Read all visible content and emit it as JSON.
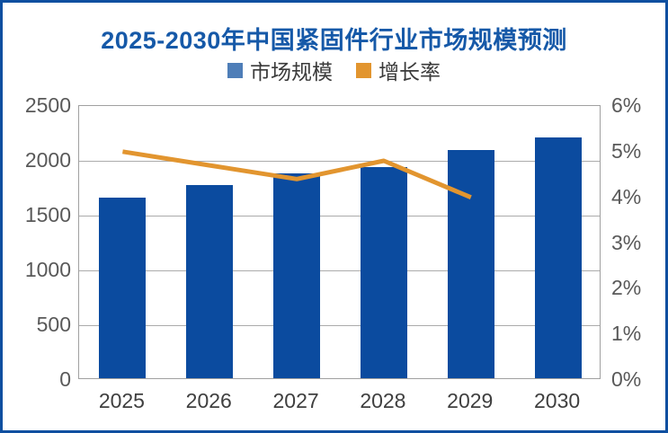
{
  "title": "2025-2030年中国紧固件行业市场规模预测",
  "legend": {
    "items": [
      {
        "label": "市场规模",
        "color": "#4e7eb8"
      },
      {
        "label": "增长率",
        "color": "#e2952f"
      }
    ]
  },
  "colors": {
    "background": "#ffffff",
    "card_border": "#0e4fa0",
    "title_text": "#1659a8",
    "bar_fill": "#0b4b9f",
    "line_stroke": "#e2952f",
    "grid_line": "#ababab",
    "plot_border": "#a0a0a0",
    "y_tick_text": "#595959",
    "x_tick_text": "#3f3f3f",
    "legend_text": "#3a3a3a"
  },
  "chart_data": {
    "type": "bar",
    "title": "2025-2030年中国紧固件行业市场规模预测",
    "categories": [
      "2025",
      "2026",
      "2027",
      "2028",
      "2029",
      "2030"
    ],
    "series": [
      {
        "name": "市场规模",
        "type": "bar",
        "axis": "left",
        "values": [
          1650,
          1760,
          1870,
          1930,
          2080,
          2200
        ]
      },
      {
        "name": "增长率",
        "type": "line",
        "axis": "right",
        "values": [
          5.0,
          4.7,
          4.4,
          4.8,
          4.0,
          null
        ]
      }
    ],
    "left_axis": {
      "min": 0,
      "max": 2500,
      "step": 500,
      "ticks": [
        "0",
        "500",
        "1000",
        "1500",
        "2000",
        "2500"
      ]
    },
    "right_axis": {
      "min": 0,
      "max": 6,
      "step": 1,
      "ticks": [
        "0%",
        "1%",
        "2%",
        "3%",
        "4%",
        "5%",
        "6%"
      ]
    },
    "grid": true,
    "legend_position": "top",
    "xlabel": "",
    "ylabel_left": "",
    "ylabel_right": ""
  }
}
